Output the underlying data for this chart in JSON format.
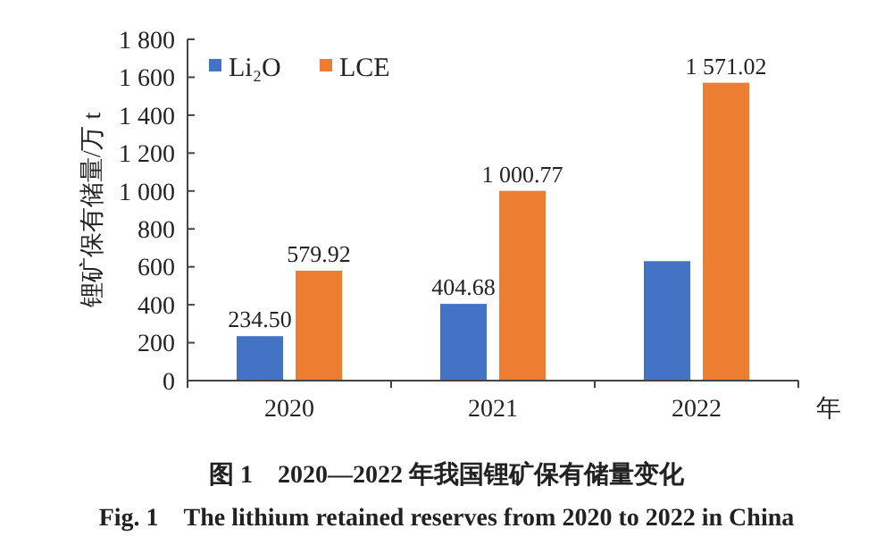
{
  "chart_data": {
    "type": "bar",
    "title": "图 1　2020—2022 年我国锂矿保有储量变化",
    "subtitle": "Fig. 1　The lithium retained reserves from 2020 to 2022 in China",
    "xlabel": "年",
    "ylabel": "锂矿保有储量/万 t",
    "categories": [
      "2020",
      "2021",
      "2022"
    ],
    "series": [
      {
        "name": "Li₂O",
        "color": "#4472c4",
        "values": [
          234.5,
          404.68,
          630
        ],
        "value_labels": [
          "234.50",
          "404.68",
          null
        ]
      },
      {
        "name": "LCE",
        "color": "#ed7d31",
        "values": [
          579.92,
          1000.77,
          1571.02
        ],
        "value_labels": [
          "579.92",
          "1 000.77",
          "1 571.02"
        ]
      }
    ],
    "ylim": [
      0,
      1800
    ],
    "yticks": [
      {
        "value": 0,
        "label": "0"
      },
      {
        "value": 200,
        "label": "200"
      },
      {
        "value": 400,
        "label": "400"
      },
      {
        "value": 600,
        "label": "600"
      },
      {
        "value": 800,
        "label": "800"
      },
      {
        "value": 1000,
        "label": "1 000"
      },
      {
        "value": 1200,
        "label": "1 200"
      },
      {
        "value": 1400,
        "label": "1 400"
      },
      {
        "value": 1600,
        "label": "1 600"
      },
      {
        "value": 1800,
        "label": "1 800"
      }
    ],
    "grid": false,
    "legend": "top left"
  }
}
